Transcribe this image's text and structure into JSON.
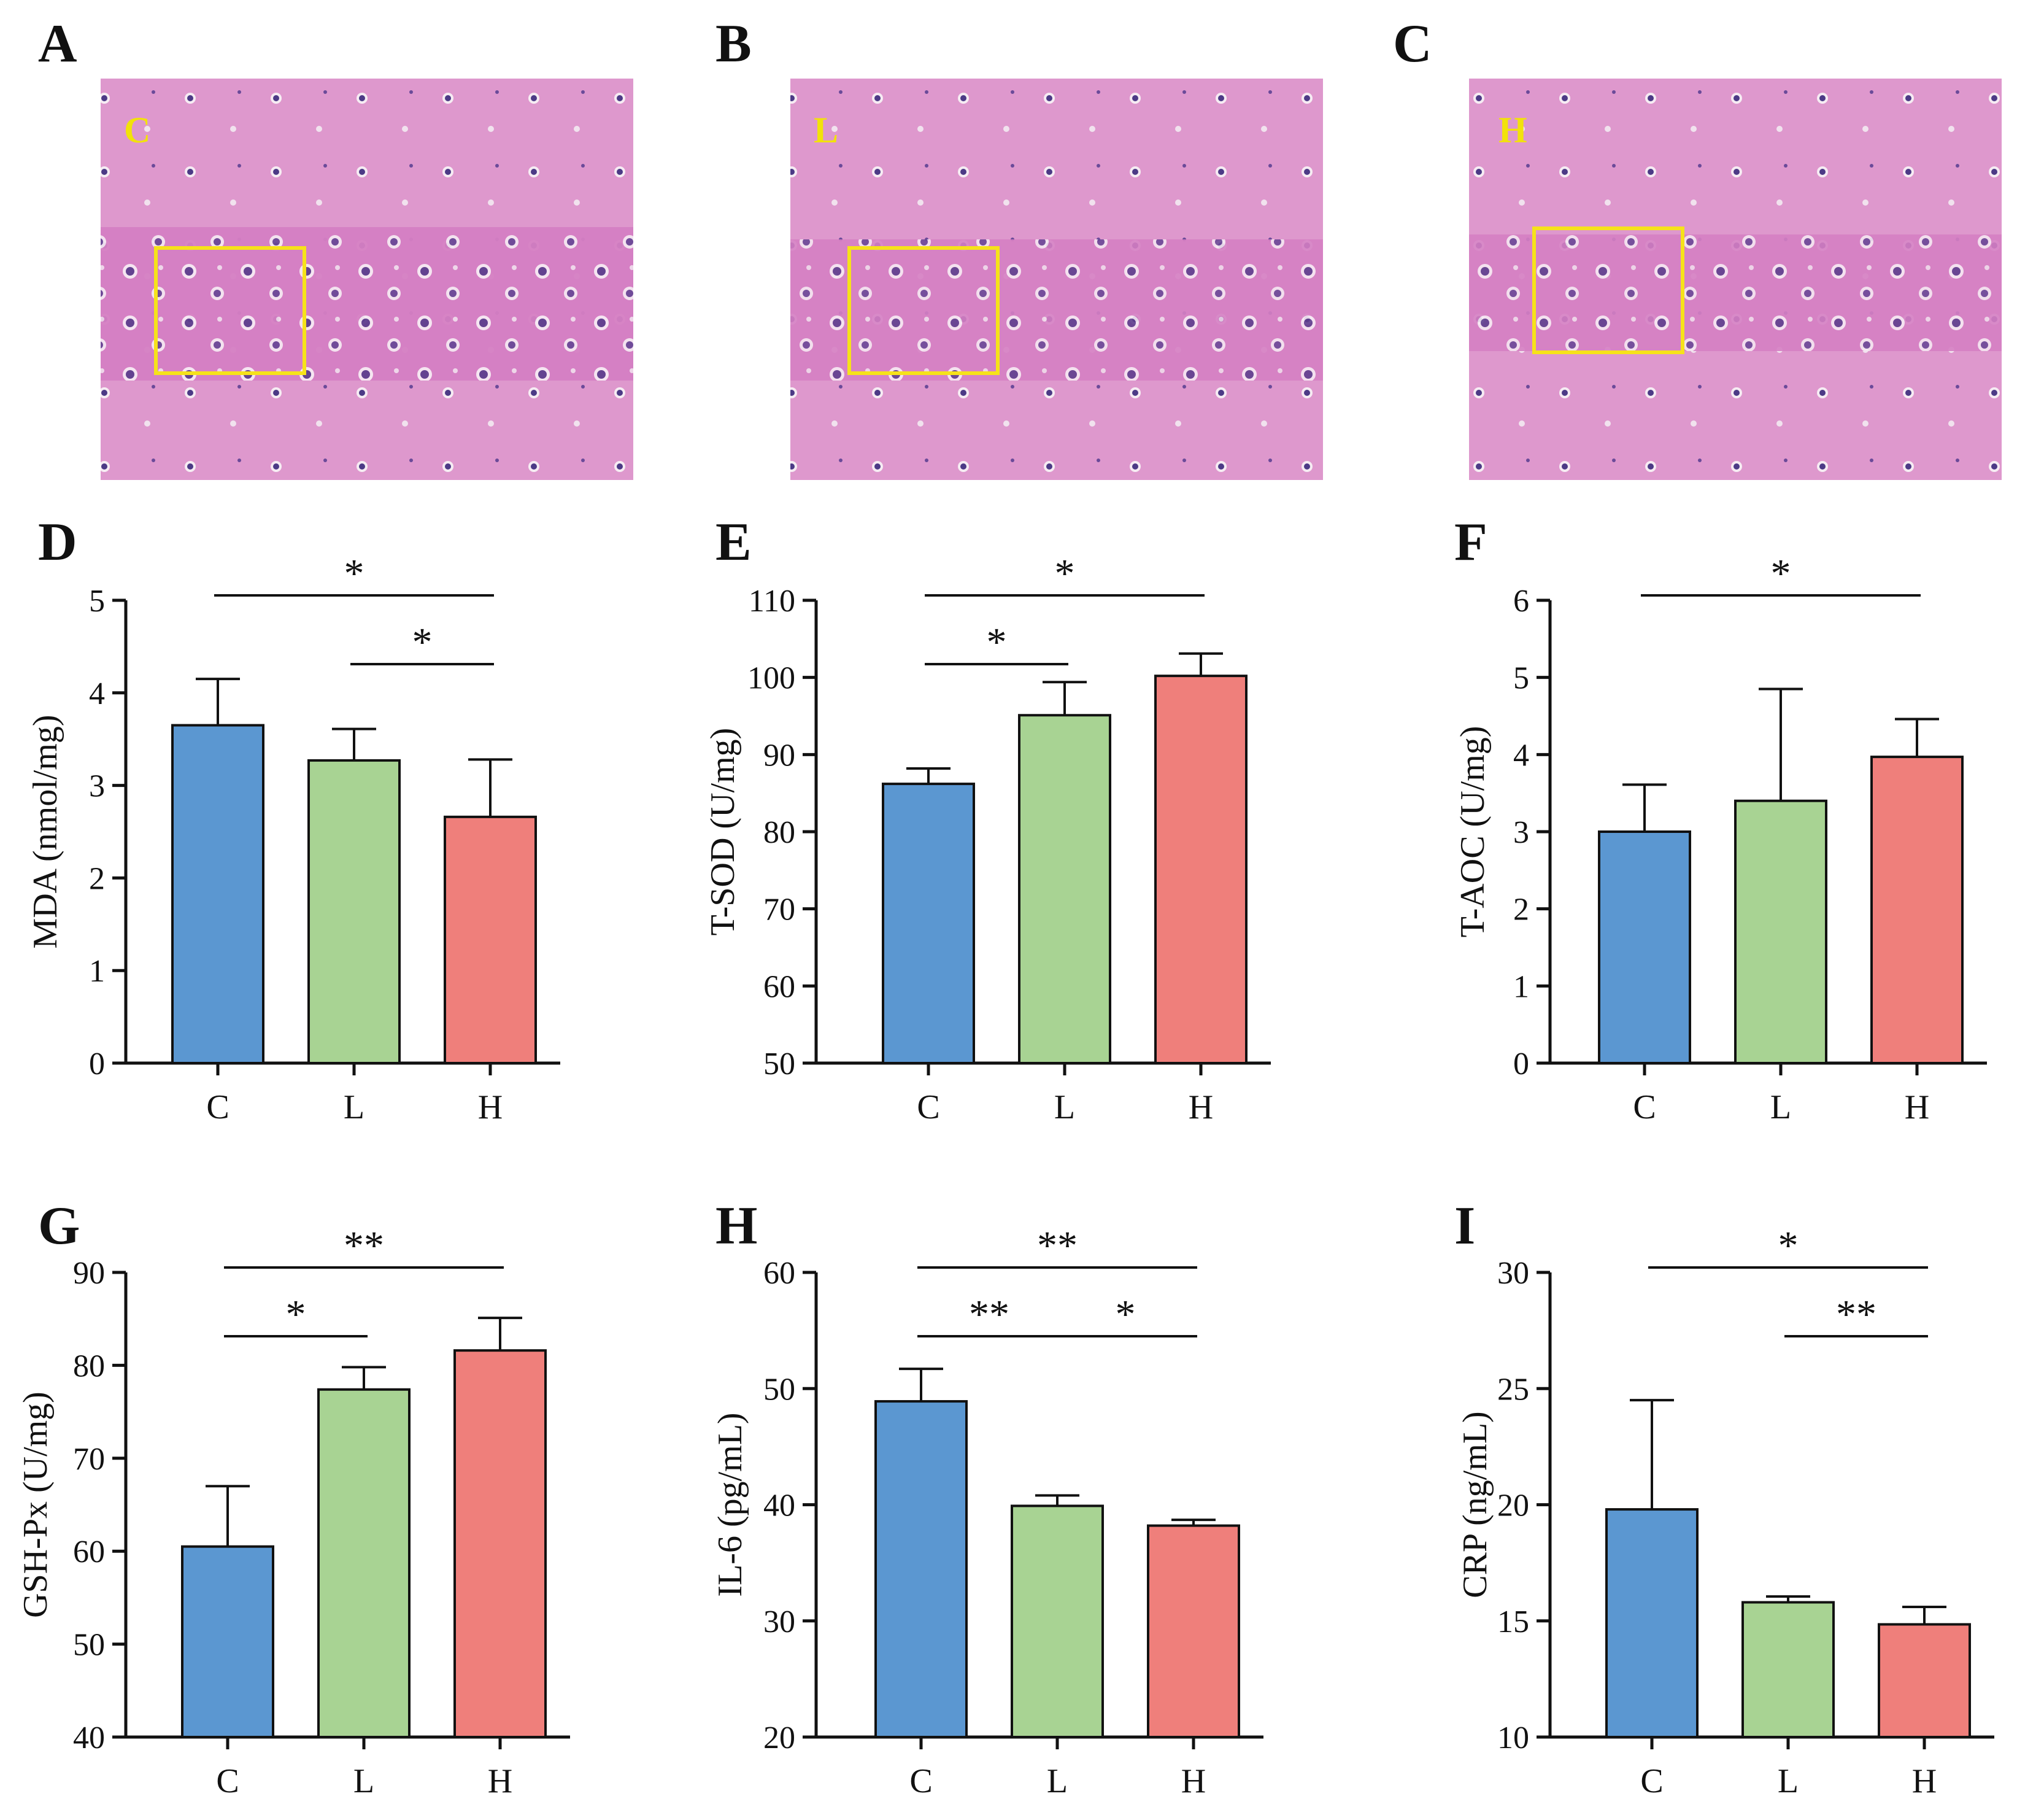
{
  "colors": {
    "C": "#5b97d1",
    "L": "#a8d393",
    "H": "#ef7f7b",
    "tissue_bg": "#d57fc3",
    "roi": "#f6e21a",
    "img_label": "#f2e20a"
  },
  "histology": [
    {
      "panel": "A",
      "label": "C"
    },
    {
      "panel": "B",
      "label": "L"
    },
    {
      "panel": "C",
      "label": "H"
    }
  ],
  "chart_data": [
    {
      "panel": "D",
      "type": "bar",
      "ylabel": "MDA (nmol/mg)",
      "categories": [
        "C",
        "L",
        "H"
      ],
      "values": [
        3.65,
        3.27,
        2.66
      ],
      "errors": [
        0.5,
        0.34,
        0.62
      ],
      "ylim": [
        0,
        5
      ],
      "ticks": [
        0,
        1,
        2,
        3,
        4,
        5
      ],
      "significance": [
        {
          "from": 0,
          "to": 2,
          "label": "*"
        },
        {
          "from": 1,
          "to": 2,
          "label": "*"
        }
      ]
    },
    {
      "panel": "E",
      "type": "bar",
      "ylabel": "T-SOD (U/mg)",
      "categories": [
        "C",
        "L",
        "H"
      ],
      "values": [
        86.2,
        95.1,
        100.2
      ],
      "errors": [
        2.0,
        4.3,
        2.9
      ],
      "ylim": [
        50,
        110
      ],
      "ticks": [
        50,
        60,
        70,
        80,
        90,
        100,
        110
      ],
      "significance": [
        {
          "from": 0,
          "to": 2,
          "label": "*"
        },
        {
          "from": 0,
          "to": 1,
          "label": "*"
        }
      ]
    },
    {
      "panel": "F",
      "type": "bar",
      "ylabel": "T-AOC (U/mg)",
      "categories": [
        "C",
        "L",
        "H"
      ],
      "values": [
        3.0,
        3.4,
        3.97
      ],
      "errors": [
        0.61,
        1.45,
        0.49
      ],
      "ylim": [
        0,
        6
      ],
      "ticks": [
        0,
        1,
        2,
        3,
        4,
        5,
        6
      ],
      "significance": [
        {
          "from": 0,
          "to": 2,
          "label": "*"
        }
      ]
    },
    {
      "panel": "G",
      "type": "bar",
      "ylabel": "GSH-Px (U/mg)",
      "categories": [
        "C",
        "L",
        "H"
      ],
      "values": [
        60.5,
        77.4,
        81.6
      ],
      "errors": [
        6.5,
        2.4,
        3.5
      ],
      "ylim": [
        40,
        90
      ],
      "ticks": [
        40,
        50,
        60,
        70,
        80,
        90
      ],
      "significance": [
        {
          "from": 0,
          "to": 2,
          "label": "**"
        },
        {
          "from": 0,
          "to": 1,
          "label": "*"
        }
      ]
    },
    {
      "panel": "H",
      "type": "bar",
      "ylabel": "IL-6 (pg/mL)",
      "categories": [
        "C",
        "L",
        "H"
      ],
      "values": [
        48.9,
        39.9,
        38.2
      ],
      "errors": [
        2.8,
        0.9,
        0.5
      ],
      "ylim": [
        20,
        60
      ],
      "ticks": [
        20,
        30,
        40,
        50,
        60
      ],
      "significance": [
        {
          "from": 0,
          "to": 2,
          "label": "**"
        },
        {
          "from": 0,
          "to": 1,
          "label": "**"
        },
        {
          "from": 1,
          "to": 2,
          "label": "*"
        }
      ]
    },
    {
      "panel": "I",
      "type": "bar",
      "ylabel": "CRP (ng/mL)",
      "categories": [
        "C",
        "L",
        "H"
      ],
      "values": [
        19.8,
        15.8,
        14.85
      ],
      "errors": [
        4.7,
        0.25,
        0.75
      ],
      "ylim": [
        10,
        30
      ],
      "ticks": [
        10,
        15,
        20,
        25,
        30
      ],
      "significance": [
        {
          "from": 0,
          "to": 2,
          "label": "*"
        },
        {
          "from": 1,
          "to": 2,
          "label": "**"
        }
      ]
    }
  ]
}
